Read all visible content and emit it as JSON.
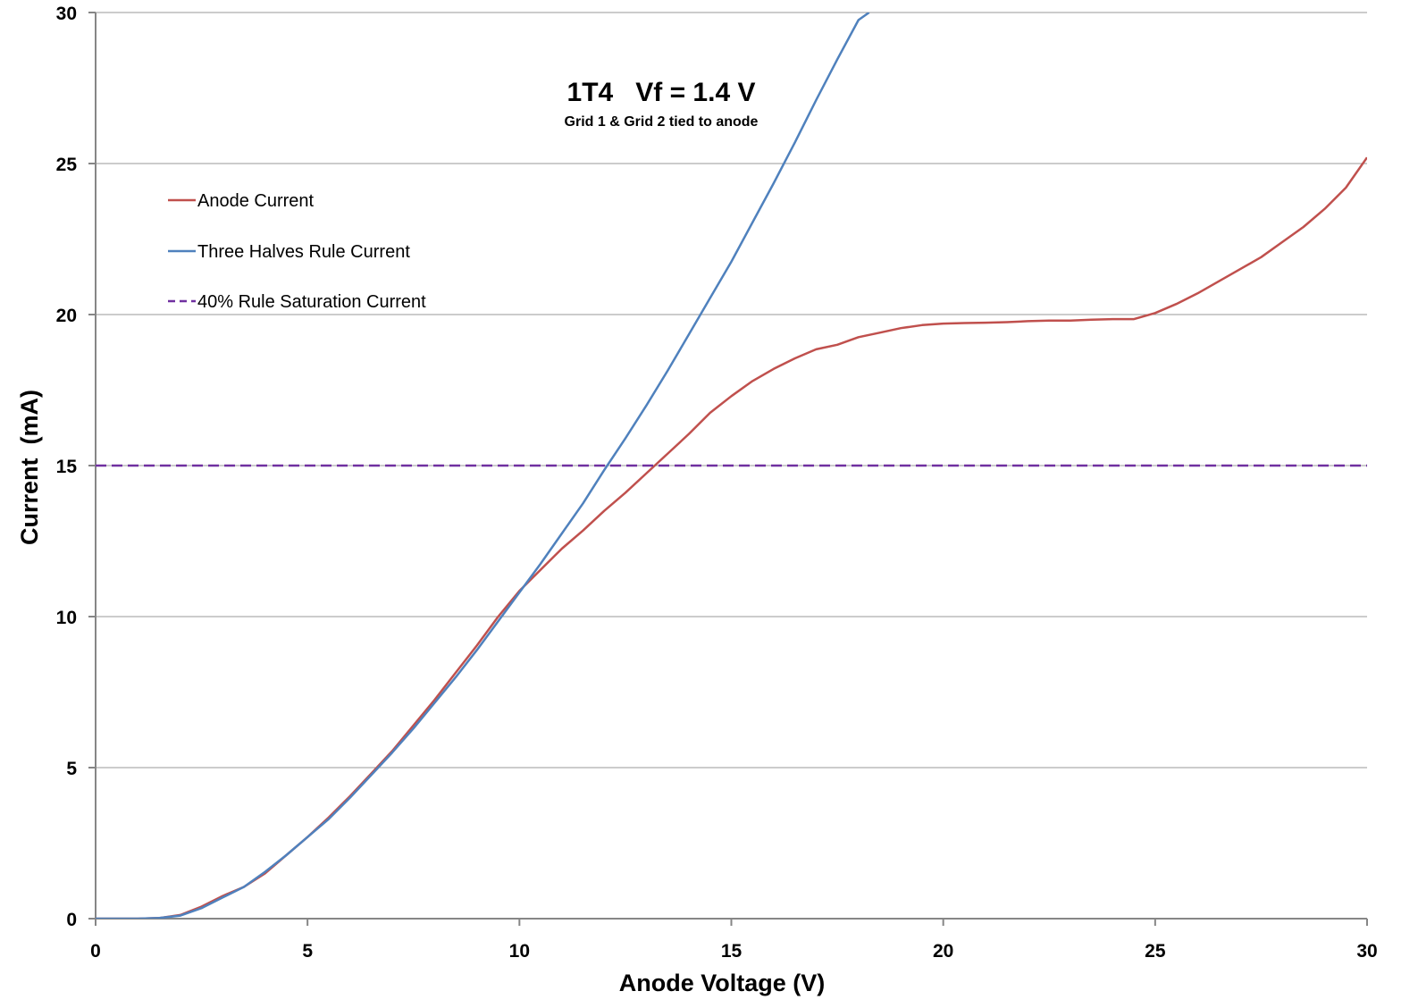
{
  "chart_data": {
    "type": "line",
    "title": "1T4   Vf = 1.4 V",
    "subtitle": "Grid 1 & Grid 2 tied to anode",
    "xlabel": "Anode Voltage (V)",
    "ylabel": "Current  (mA)",
    "xlim": [
      0,
      30
    ],
    "ylim": [
      0,
      30
    ],
    "xticks": [
      0,
      5,
      10,
      15,
      20,
      25,
      30
    ],
    "yticks": [
      0,
      5,
      10,
      15,
      20,
      25,
      30
    ],
    "grid": "horizontal",
    "legend_position": "top-left",
    "series": [
      {
        "name": "Anode Current",
        "color": "#c0504d",
        "style": "solid",
        "x": [
          0,
          1,
          1.5,
          2,
          2.5,
          3,
          3.5,
          4,
          4.5,
          5,
          5.5,
          6,
          6.5,
          7,
          7.5,
          8,
          8.5,
          9,
          9.5,
          10,
          10.5,
          11,
          11.5,
          12,
          12.5,
          13,
          13.5,
          14,
          14.5,
          15,
          15.5,
          16,
          16.5,
          17,
          17.5,
          18,
          18.5,
          19,
          19.5,
          20,
          20.5,
          21,
          21.5,
          22,
          22.5,
          23,
          23.5,
          24,
          24.5,
          25,
          25.5,
          26,
          26.5,
          27,
          27.5,
          28,
          28.5,
          29,
          29.5,
          30
        ],
        "y": [
          0,
          0,
          0.02,
          0.12,
          0.4,
          0.75,
          1.05,
          1.5,
          2.1,
          2.7,
          3.35,
          4.05,
          4.8,
          5.55,
          6.4,
          7.25,
          8.15,
          9.05,
          10.0,
          10.85,
          11.55,
          12.25,
          12.85,
          13.5,
          14.1,
          14.75,
          15.4,
          16.05,
          16.75,
          17.3,
          17.8,
          18.2,
          18.55,
          18.85,
          19.0,
          19.25,
          19.4,
          19.55,
          19.65,
          19.7,
          19.72,
          19.73,
          19.75,
          19.78,
          19.8,
          19.8,
          19.83,
          19.85,
          19.85,
          20.05,
          20.35,
          20.7,
          21.1,
          21.5,
          21.9,
          22.4,
          22.9,
          23.5,
          24.2,
          25.2
        ]
      },
      {
        "name": "Three Halves Rule Current",
        "color": "#4f81bd",
        "style": "solid",
        "x": [
          0,
          1,
          1.5,
          2,
          2.5,
          3,
          3.5,
          4,
          4.5,
          5,
          5.5,
          6,
          6.5,
          7,
          7.5,
          8,
          8.5,
          9,
          9.5,
          10,
          10.5,
          11,
          11.5,
          12,
          12.5,
          13,
          13.5,
          14,
          14.5,
          15,
          15.5,
          16,
          16.5,
          17,
          17.5,
          18,
          18.25
        ],
        "y": [
          0,
          0,
          0.02,
          0.1,
          0.35,
          0.7,
          1.05,
          1.55,
          2.1,
          2.7,
          3.3,
          4.0,
          4.75,
          5.5,
          6.3,
          7.15,
          8.0,
          8.9,
          9.85,
          10.8,
          11.75,
          12.75,
          13.75,
          14.85,
          15.9,
          17.0,
          18.15,
          19.35,
          20.55,
          21.75,
          23.05,
          24.35,
          25.7,
          27.1,
          28.45,
          29.75,
          30.0
        ]
      },
      {
        "name": "40% Rule Saturation Current",
        "color": "#7030a0",
        "style": "dashed",
        "x": [
          0,
          30
        ],
        "y": [
          15,
          15
        ]
      }
    ]
  }
}
